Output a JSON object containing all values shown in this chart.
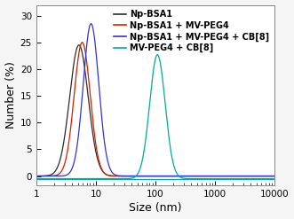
{
  "title": "",
  "xlabel": "Size (nm)",
  "ylabel": "Number (%)",
  "xlim": [
    1,
    10000
  ],
  "ylim": [
    -1.8,
    32
  ],
  "yticks": [
    0,
    5,
    10,
    15,
    20,
    25,
    30
  ],
  "curves": [
    {
      "label": "Np-BSA1",
      "color": "#2b2b2b",
      "peak": 5.2,
      "sigma": 0.155,
      "amplitude": 24.5
    },
    {
      "label": "Np-BSA1 + MV-PEG4",
      "color": "#cc2200",
      "peak": 5.9,
      "sigma": 0.135,
      "amplitude": 25.0
    },
    {
      "label": "Np-BSA1 + MV-PEG4 + CB[8]",
      "color": "#3333cc",
      "peak": 8.3,
      "sigma": 0.13,
      "amplitude": 28.5
    },
    {
      "label": "MV-PEG4 + CB[8]",
      "color": "#00a89d",
      "peak": 108,
      "sigma": 0.13,
      "amplitude": 23.2
    }
  ],
  "teal_baseline": -0.5,
  "legend_fontsize": 7,
  "axis_label_fontsize": 9,
  "tick_fontsize": 7.5,
  "bg_color": "#f5f5f5",
  "plot_bg_color": "#ffffff"
}
